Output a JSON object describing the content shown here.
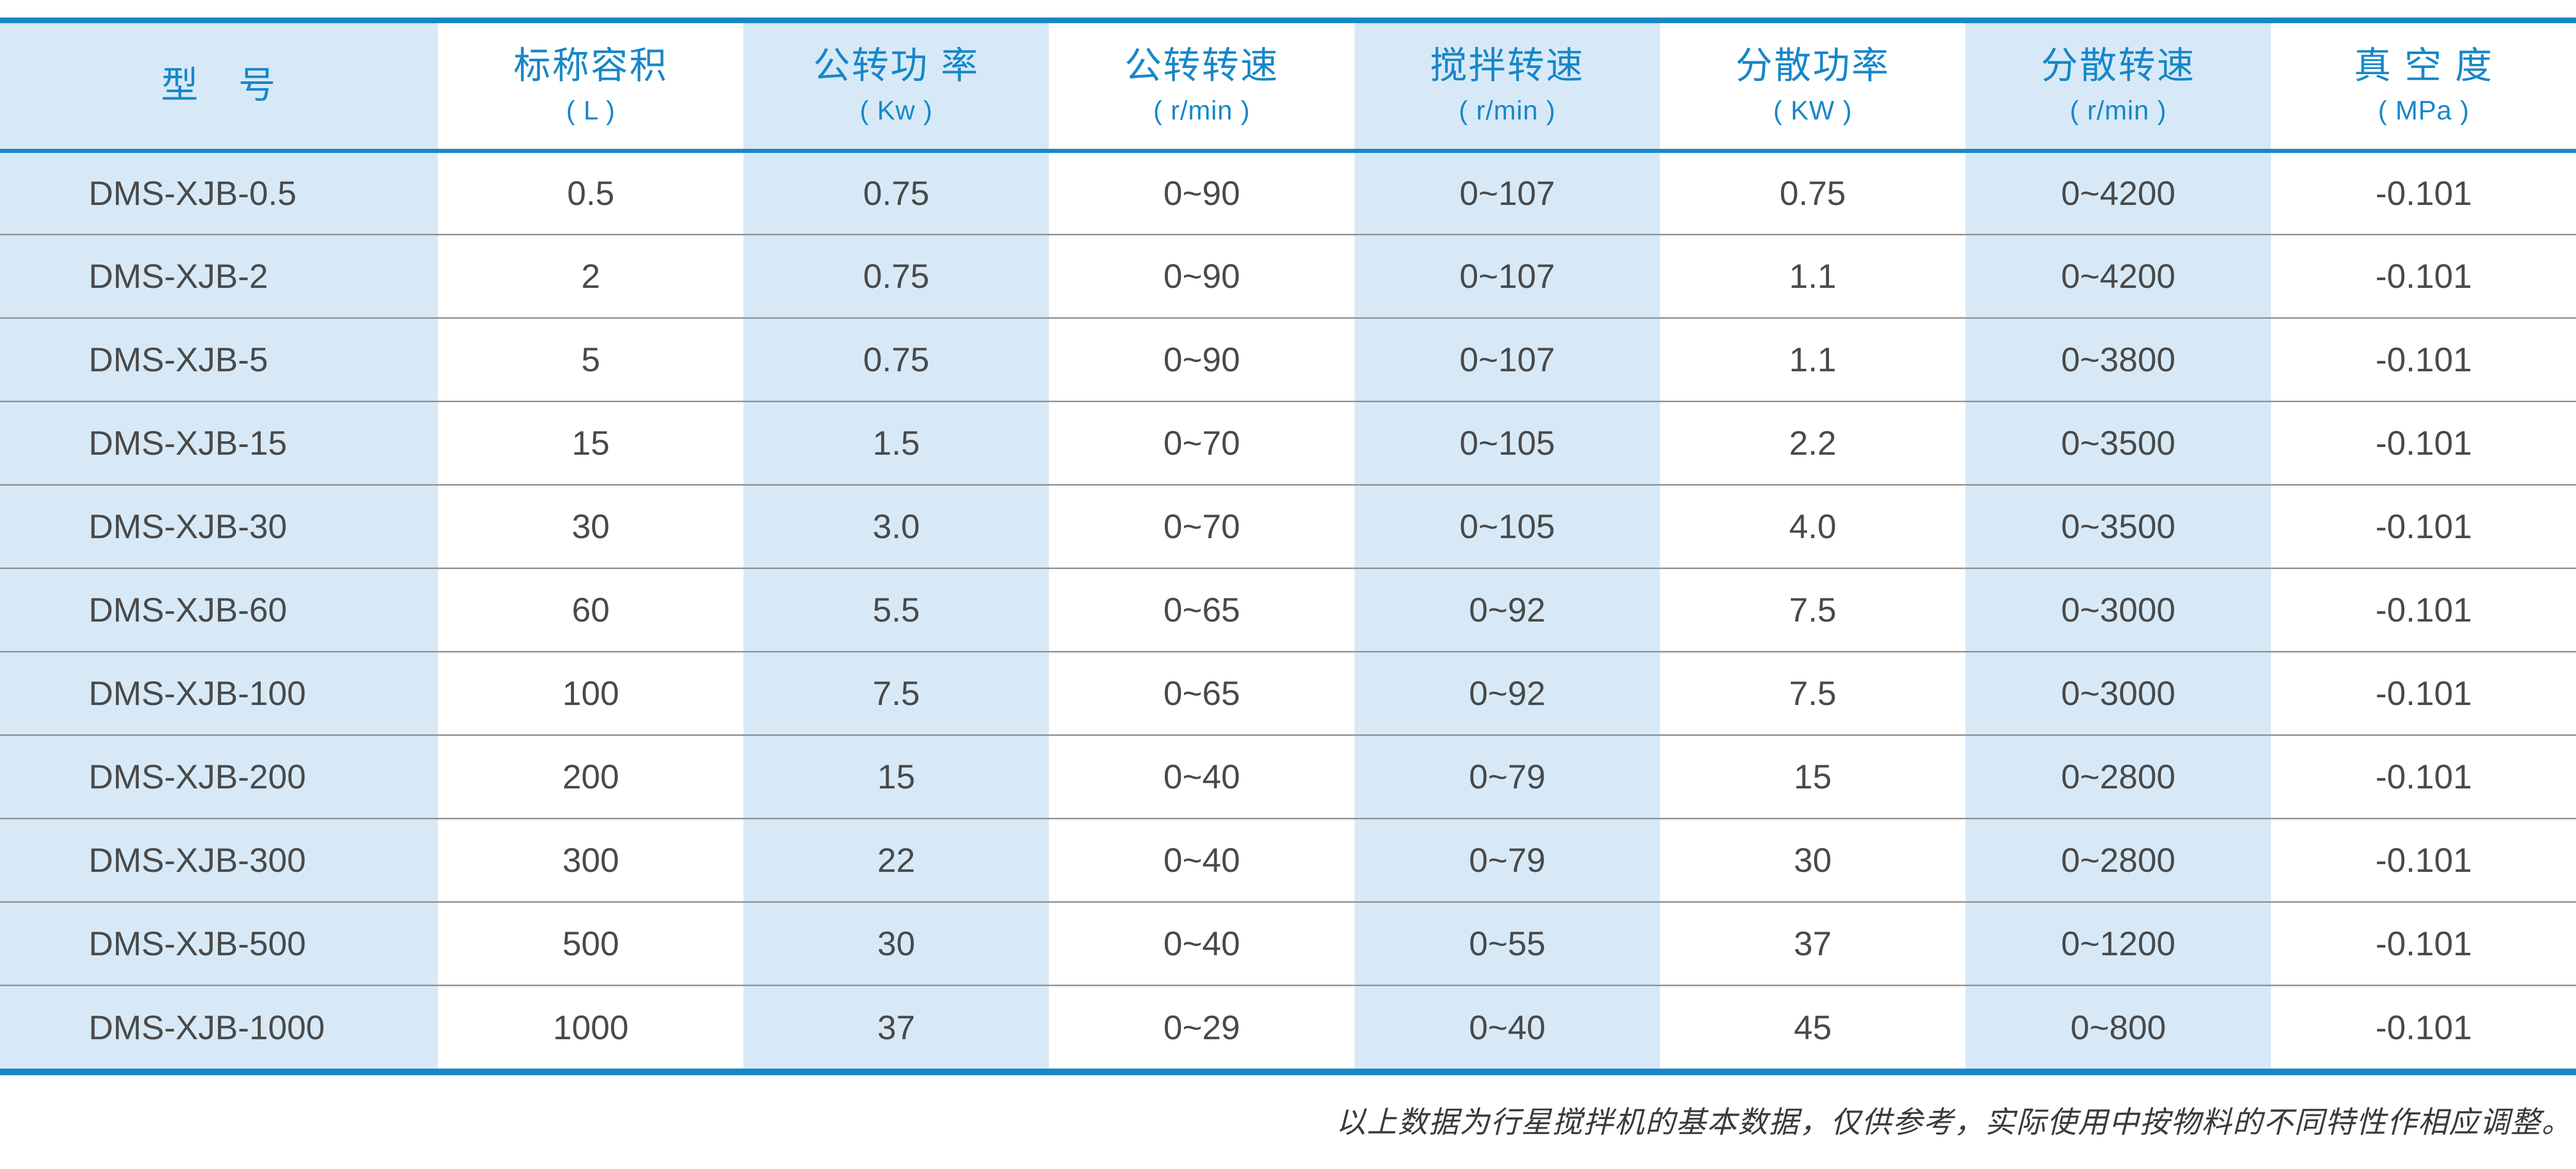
{
  "colors": {
    "accent_blue": "#1a86c8",
    "header_text_blue": "#1787c9",
    "stripe_blue": "#d7e9f7",
    "body_text": "#4a4a4a",
    "row_divider": "#969696"
  },
  "table": {
    "columns": [
      {
        "title": "型　号",
        "unit": ""
      },
      {
        "title": "标称容积",
        "unit": "( L )"
      },
      {
        "title": "公转功 率",
        "unit": "( Kw )"
      },
      {
        "title": "公转转速",
        "unit": "( r/min )"
      },
      {
        "title": "搅拌转速",
        "unit": "( r/min )"
      },
      {
        "title": "分散功率",
        "unit": "( KW )"
      },
      {
        "title": "分散转速",
        "unit": "( r/min )"
      },
      {
        "title": "真 空 度",
        "unit": "( MPa )"
      }
    ],
    "rows": [
      [
        "DMS-XJB-0.5",
        "0.5",
        "0.75",
        "0~90",
        "0~107",
        "0.75",
        "0~4200",
        "-0.101"
      ],
      [
        "DMS-XJB-2",
        "2",
        "0.75",
        "0~90",
        "0~107",
        "1.1",
        "0~4200",
        "-0.101"
      ],
      [
        "DMS-XJB-5",
        "5",
        "0.75",
        "0~90",
        "0~107",
        "1.1",
        "0~3800",
        "-0.101"
      ],
      [
        "DMS-XJB-15",
        "15",
        "1.5",
        "0~70",
        "0~105",
        "2.2",
        "0~3500",
        "-0.101"
      ],
      [
        "DMS-XJB-30",
        "30",
        "3.0",
        "0~70",
        "0~105",
        "4.0",
        "0~3500",
        "-0.101"
      ],
      [
        "DMS-XJB-60",
        "60",
        "5.5",
        "0~65",
        "0~92",
        "7.5",
        "0~3000",
        "-0.101"
      ],
      [
        "DMS-XJB-100",
        "100",
        "7.5",
        "0~65",
        "0~92",
        "7.5",
        "0~3000",
        "-0.101"
      ],
      [
        "DMS-XJB-200",
        "200",
        "15",
        "0~40",
        "0~79",
        "15",
        "0~2800",
        "-0.101"
      ],
      [
        "DMS-XJB-300",
        "300",
        "22",
        "0~40",
        "0~79",
        "30",
        "0~2800",
        "-0.101"
      ],
      [
        "DMS-XJB-500",
        "500",
        "30",
        "0~40",
        "0~55",
        "37",
        "0~1200",
        "-0.101"
      ],
      [
        "DMS-XJB-1000",
        "1000",
        "37",
        "0~29",
        "0~40",
        "45",
        "0~800",
        "-0.101"
      ]
    ]
  },
  "footer": {
    "note": "以上数据为行星搅拌机的基本数据，仅供参考，实际使用中按物料的不同特性作相应调整。"
  }
}
